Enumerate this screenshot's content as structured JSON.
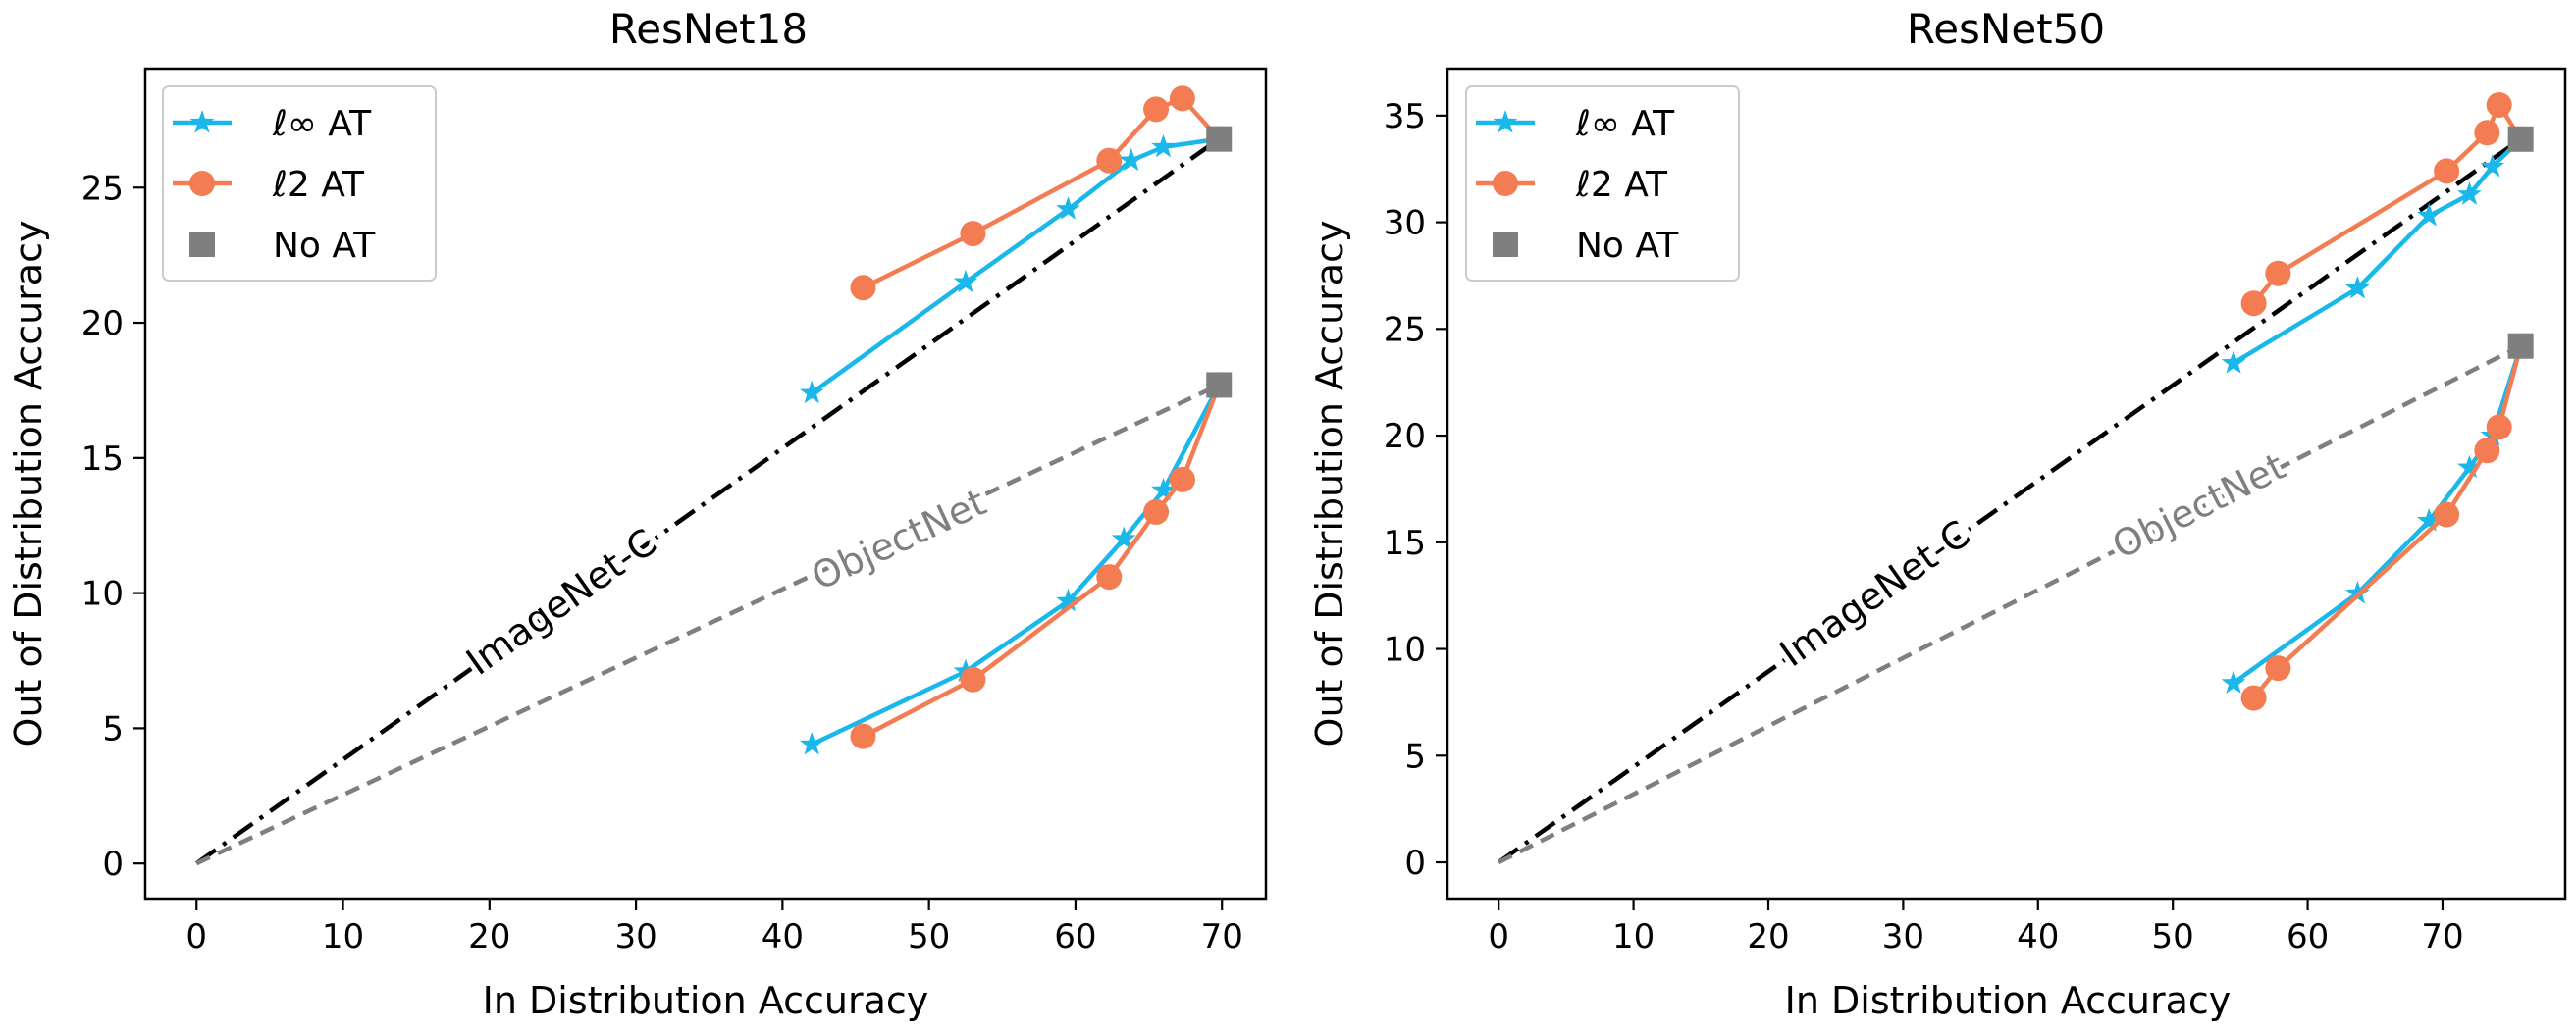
{
  "colors": {
    "linf": "#1ab7ea",
    "l2": "#f47c52",
    "noat": "#7f7f7f",
    "imagenet_c_line": "#000000",
    "objectnet_line": "#7f7f7f"
  },
  "legend": {
    "linf": "ℓ∞ AT",
    "l2": "ℓ2 AT",
    "noat": "No AT"
  },
  "chart_data": [
    {
      "type": "line",
      "title": "ResNet18",
      "xlabel": "In Distribution Accuracy",
      "ylabel": "Out of Distribution Accuracy",
      "xlim": [
        -3.5,
        73
      ],
      "ylim": [
        -1.3,
        29.4
      ],
      "xticks": [
        "0",
        "10",
        "20",
        "30",
        "40",
        "50",
        "60",
        "70"
      ],
      "yticks": [
        "0",
        "5",
        "10",
        "15",
        "20",
        "25"
      ],
      "xtick_values": [
        0,
        10,
        20,
        30,
        40,
        50,
        60,
        70
      ],
      "ytick_values": [
        0,
        5,
        10,
        15,
        20,
        25
      ],
      "reference_lines": [
        {
          "name": "ImageNet-C",
          "style": "dashdot",
          "from": [
            0,
            0
          ],
          "to": [
            69.8,
            26.8
          ],
          "label_at": [
            25,
            9.6
          ]
        },
        {
          "name": "ObjectNet",
          "style": "dashed",
          "from": [
            0,
            0
          ],
          "to": [
            69.8,
            17.7
          ],
          "label_at": [
            48,
            11.9
          ]
        }
      ],
      "series": [
        {
          "name": "ℓ∞ AT",
          "group": "ImageNet-C",
          "marker": "star",
          "x": [
            42.0,
            52.5,
            59.5,
            63.8,
            66.0,
            69.8
          ],
          "y": [
            17.4,
            21.5,
            24.2,
            26.0,
            26.5,
            26.8
          ]
        },
        {
          "name": "ℓ2 AT",
          "group": "ImageNet-C",
          "marker": "circle",
          "x": [
            45.5,
            53.0,
            62.3,
            65.5,
            67.3,
            69.8
          ],
          "y": [
            21.3,
            23.3,
            26.0,
            27.9,
            28.3,
            26.8
          ]
        },
        {
          "name": "No AT",
          "group": "ImageNet-C",
          "marker": "square",
          "x": [
            69.8
          ],
          "y": [
            26.8
          ]
        },
        {
          "name": "ℓ∞ AT",
          "group": "ObjectNet",
          "marker": "star",
          "x": [
            42.0,
            52.5,
            59.5,
            63.3,
            66.0,
            69.8
          ],
          "y": [
            4.4,
            7.1,
            9.7,
            12.0,
            13.8,
            17.7
          ]
        },
        {
          "name": "ℓ2 AT",
          "group": "ObjectNet",
          "marker": "circle",
          "x": [
            45.5,
            53.0,
            62.3,
            65.5,
            67.3,
            69.8
          ],
          "y": [
            4.7,
            6.8,
            10.6,
            13.0,
            14.2,
            17.7
          ]
        },
        {
          "name": "No AT",
          "group": "ObjectNet",
          "marker": "square",
          "x": [
            69.8
          ],
          "y": [
            17.7
          ]
        }
      ]
    },
    {
      "type": "line",
      "title": "ResNet50",
      "xlabel": "In Distribution Accuracy",
      "ylabel": "Out of Distribution Accuracy",
      "xlim": [
        -3.8,
        79.1
      ],
      "ylim": [
        -1.7,
        37.2
      ],
      "xticks": [
        "0",
        "10",
        "20",
        "30",
        "40",
        "50",
        "60",
        "70"
      ],
      "yticks": [
        "0",
        "5",
        "10",
        "15",
        "20",
        "25",
        "30",
        "35"
      ],
      "xtick_values": [
        0,
        10,
        20,
        30,
        40,
        50,
        60,
        70
      ],
      "ytick_values": [
        0,
        5,
        10,
        15,
        20,
        25,
        30,
        35
      ],
      "reference_lines": [
        {
          "name": "ImageNet-C",
          "style": "dashdot",
          "from": [
            0,
            0
          ],
          "to": [
            75.8,
            33.9
          ],
          "label_at": [
            28,
            12.5
          ]
        },
        {
          "name": "ObjectNet",
          "style": "dashed",
          "from": [
            0,
            0
          ],
          "to": [
            75.8,
            24.2
          ],
          "label_at": [
            52,
            16.6
          ]
        }
      ],
      "series": [
        {
          "name": "ℓ∞ AT",
          "group": "ImageNet-C",
          "marker": "star",
          "x": [
            54.5,
            63.7,
            69.0,
            72.0,
            73.7,
            75.8
          ],
          "y": [
            23.4,
            26.9,
            30.3,
            31.3,
            32.6,
            33.9
          ]
        },
        {
          "name": "ℓ2 AT",
          "group": "ImageNet-C",
          "marker": "circle",
          "x": [
            56.0,
            57.8,
            70.3,
            73.3,
            74.2,
            75.8
          ],
          "y": [
            26.2,
            27.6,
            32.4,
            34.2,
            35.5,
            33.9
          ]
        },
        {
          "name": "No AT",
          "group": "ImageNet-C",
          "marker": "square",
          "x": [
            75.8
          ],
          "y": [
            33.9
          ]
        },
        {
          "name": "ℓ∞ AT",
          "group": "ObjectNet",
          "marker": "star",
          "x": [
            54.5,
            63.7,
            69.0,
            72.0,
            73.7,
            75.8
          ],
          "y": [
            8.4,
            12.6,
            16.0,
            18.5,
            20.0,
            24.2
          ]
        },
        {
          "name": "ℓ2 AT",
          "group": "ObjectNet",
          "marker": "circle",
          "x": [
            56.0,
            57.8,
            70.3,
            73.3,
            74.2,
            75.8
          ],
          "y": [
            7.7,
            9.1,
            16.3,
            19.3,
            20.4,
            24.2
          ]
        },
        {
          "name": "No AT",
          "group": "ObjectNet",
          "marker": "square",
          "x": [
            75.8
          ],
          "y": [
            24.2
          ]
        }
      ]
    }
  ]
}
